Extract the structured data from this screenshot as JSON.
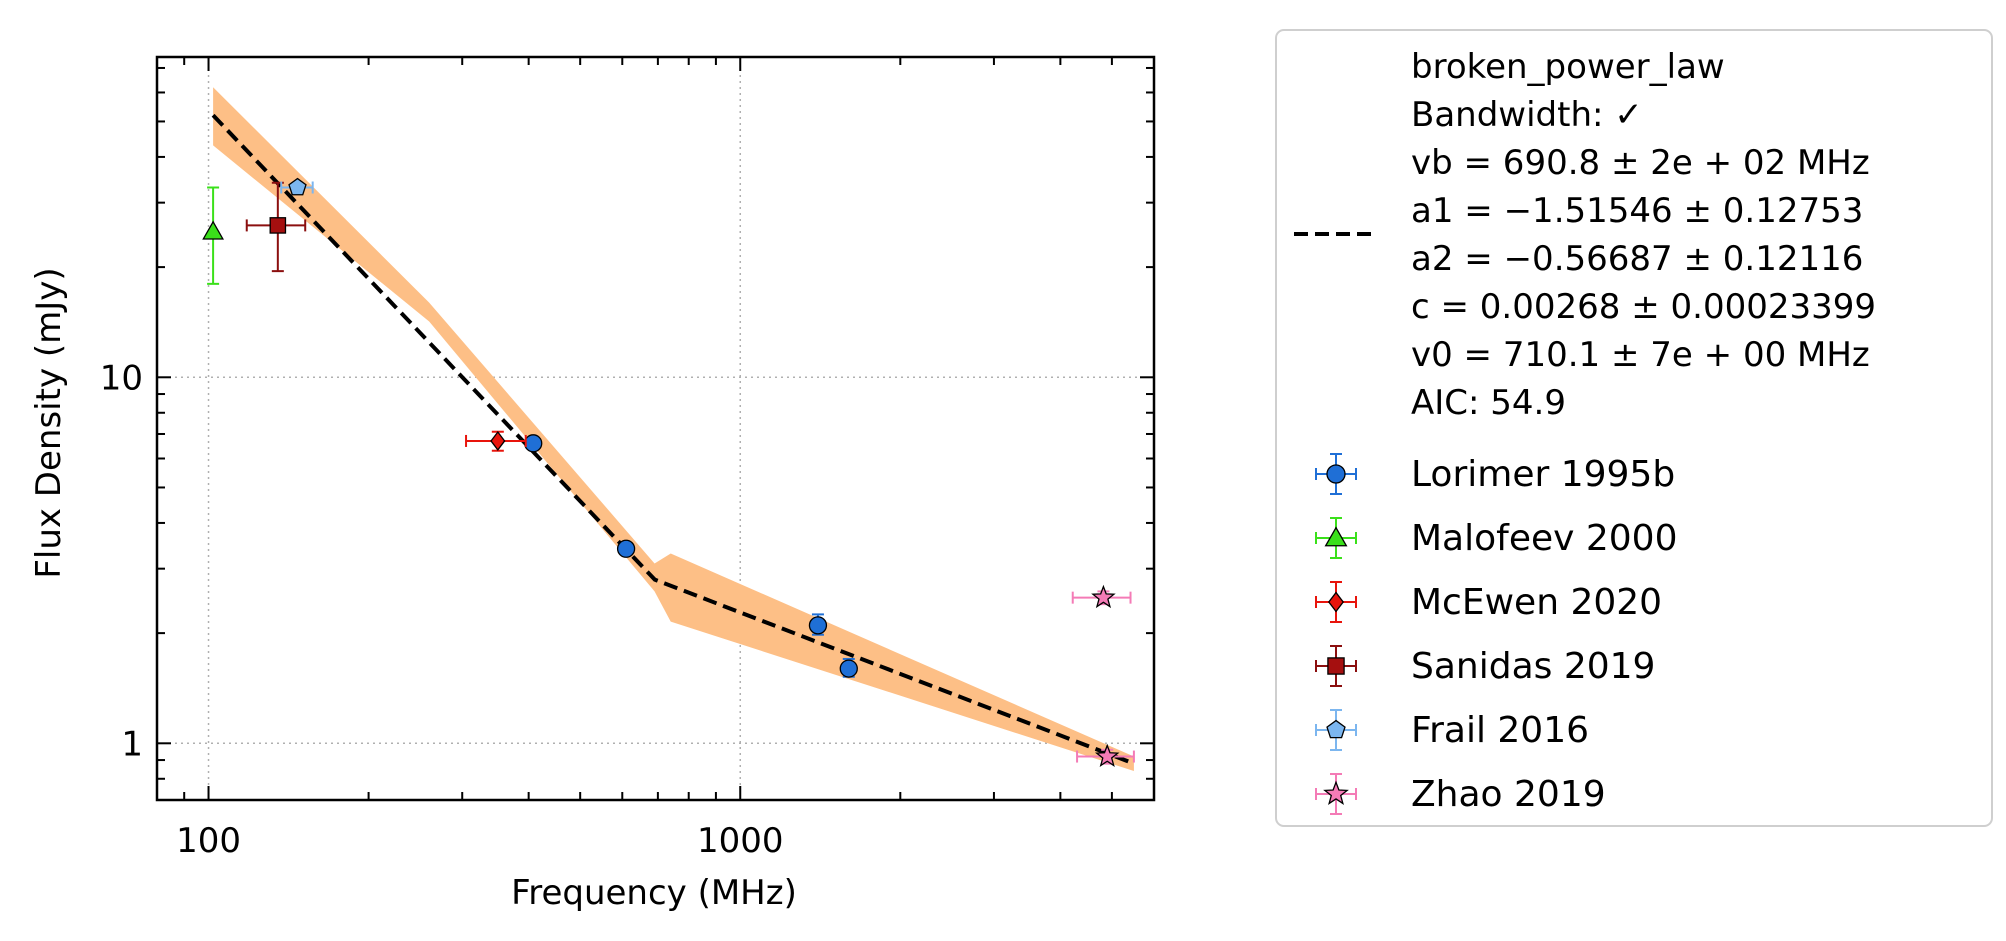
{
  "chart_data": {
    "type": "scatter",
    "xlabel": "Frequency (MHz)",
    "ylabel": "Flux Density (mJy)",
    "x_scale": "log",
    "y_scale": "log",
    "xlim": [
      80,
      6000
    ],
    "ylim": [
      0.7,
      75
    ],
    "grid": true,
    "legend_position": "right, outside plot",
    "x_ticks": [
      {
        "value": 100,
        "label": "100"
      },
      {
        "value": 1000,
        "label": "1000"
      }
    ],
    "y_ticks": [
      {
        "value": 1,
        "label": "1"
      },
      {
        "value": 10,
        "label": "10"
      }
    ],
    "fit": {
      "name": "broken_power_law",
      "lines": [
        "broken_power_law",
        "Bandwidth: ✓",
        "vb = 690.8 ± 2e + 02 MHz",
        "a1 = −1.51546 ± 0.12753",
        "a2 = −0.56687 ± 0.12116",
        "c = 0.00268 ± 0.00023399",
        "v0 = 710.1 ± 7e + 00 MHz",
        "AIC: 54.9"
      ],
      "curve": [
        [
          102,
          52
        ],
        [
          690.8,
          2.8
        ],
        [
          5500,
          0.88
        ]
      ],
      "band_upper": [
        [
          102,
          62
        ],
        [
          260,
          16
        ],
        [
          690,
          3.1
        ],
        [
          740,
          3.3
        ],
        [
          5500,
          0.92
        ]
      ],
      "band_lower": [
        [
          102,
          43
        ],
        [
          260,
          14.2
        ],
        [
          690,
          2.6
        ],
        [
          740,
          2.15
        ],
        [
          5500,
          0.84
        ]
      ],
      "color": "#000000",
      "band_color": "#fdbf86"
    },
    "series": [
      {
        "name": "Lorimer 1995b",
        "marker": "circle",
        "color": "#1f6fd6",
        "errcolor": "#1f6fd6",
        "points": [
          {
            "x": 408,
            "y": 6.6,
            "yerr": [
              0.2,
              0.2
            ],
            "xerr": [
              0,
              0
            ]
          },
          {
            "x": 610,
            "y": 3.4,
            "yerr": [
              0.1,
              0.1
            ],
            "xerr": [
              0,
              0
            ]
          },
          {
            "x": 1400,
            "y": 2.1,
            "yerr": [
              0.12,
              0.15
            ],
            "xerr": [
              0,
              0
            ]
          },
          {
            "x": 1600,
            "y": 1.6,
            "yerr": [
              0.08,
              0.1
            ],
            "xerr": [
              0,
              0
            ]
          }
        ]
      },
      {
        "name": "Malofeev 2000",
        "marker": "triangle",
        "color": "#3ae01a",
        "errcolor": "#3ae01a",
        "points": [
          {
            "x": 102,
            "y": 25,
            "yerr": [
              7,
              8
            ],
            "xerr": [
              0,
              0
            ]
          }
        ]
      },
      {
        "name": "McEwen 2020",
        "marker": "diamond",
        "color": "#e8140c",
        "errcolor": "#e8140c",
        "points": [
          {
            "x": 350,
            "y": 6.7,
            "yerr": [
              0.4,
              0.4
            ],
            "xerr": [
              45,
              45
            ]
          }
        ]
      },
      {
        "name": "Sanidas 2019",
        "marker": "square",
        "color": "#a50f0f",
        "errcolor": "#8b0f0f",
        "points": [
          {
            "x": 135,
            "y": 26,
            "yerr": [
              6.5,
              8
            ],
            "xerr": [
              17,
              17
            ]
          }
        ]
      },
      {
        "name": "Frail 2016",
        "marker": "pentagon",
        "color": "#7cb6ef",
        "errcolor": "#7cb6ef",
        "points": [
          {
            "x": 147,
            "y": 33,
            "yerr": [
              1,
              1
            ],
            "xerr": [
              10,
              10
            ]
          }
        ]
      },
      {
        "name": "Zhao 2019",
        "marker": "star",
        "color": "#f47bb6",
        "errcolor": "#f47bb6",
        "points": [
          {
            "x": 4820,
            "y": 2.5,
            "yerr": [
              0.1,
              0.1
            ],
            "xerr": [
              600,
              600
            ]
          },
          {
            "x": 4900,
            "y": 0.92,
            "yerr": [
              0.04,
              0.04
            ],
            "xerr": [
              600,
              600
            ]
          }
        ]
      }
    ]
  }
}
